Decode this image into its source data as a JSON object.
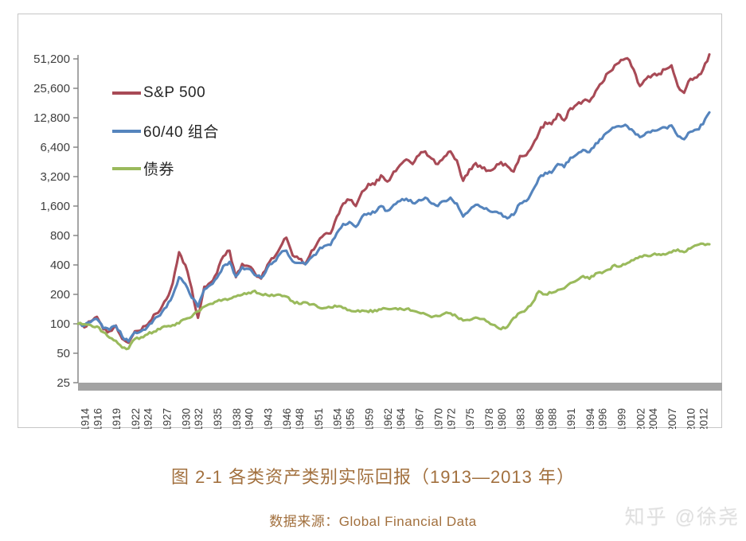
{
  "figure": {
    "title": "图 2-1 各类资产类别实际回报（1913—2013 年）",
    "source_label": "数据来源：Global Financial Data",
    "watermark": "知乎 @徐尧"
  },
  "colors": {
    "sp500": "#a84a56",
    "portfolio6040": "#5584bd",
    "bonds": "#9aba5c",
    "axis_line": "#7f7f7f",
    "axis_text": "#3f3f3f",
    "baseline_bar": "#a3a3a3",
    "caption": "#a2703e",
    "watermark": "#e0e0e0"
  },
  "chart_data": {
    "type": "line",
    "title": "",
    "xlabel": "",
    "ylabel": "",
    "grid": false,
    "legend_position": "inside-top-left",
    "y_scale": "log2",
    "ylim": [
      25,
      51200
    ],
    "y_ticks": [
      {
        "value": 51200,
        "label": "51,200"
      },
      {
        "value": 25600,
        "label": "25,600"
      },
      {
        "value": 12800,
        "label": "12,800"
      },
      {
        "value": 6400,
        "label": "6,400"
      },
      {
        "value": 3200,
        "label": "3,200"
      },
      {
        "value": 1600,
        "label": "1,600"
      },
      {
        "value": 800,
        "label": "800"
      },
      {
        "value": 400,
        "label": "400"
      },
      {
        "value": 200,
        "label": "200"
      },
      {
        "value": 100,
        "label": "100"
      },
      {
        "value": 50,
        "label": "50"
      },
      {
        "value": 25,
        "label": "25"
      }
    ],
    "x_range": [
      1913,
      2013
    ],
    "x_tick_labels": [
      "1914",
      "1916",
      "1919",
      "1922",
      "1924",
      "1927",
      "1930",
      "1932",
      "1935",
      "1938",
      "1940",
      "1943",
      "1946",
      "1948",
      "1951",
      "1954",
      "1956",
      "1959",
      "1962",
      "1964",
      "1967",
      "1970",
      "1972",
      "1975",
      "1978",
      "1980",
      "1983",
      "1986",
      "1988",
      "1991",
      "1994",
      "1996",
      "1999",
      "2002",
      "2004",
      "2007",
      "2010",
      "2012"
    ],
    "years_start": 1913,
    "series": [
      {
        "name": "S&P 500",
        "color": "#a84a56",
        "values": [
          100,
          92,
          106,
          118,
          88,
          84,
          96,
          70,
          64,
          84,
          86,
          98,
          124,
          138,
          178,
          260,
          540,
          400,
          230,
          115,
          240,
          265,
          330,
          490,
          560,
          300,
          410,
          390,
          330,
          290,
          400,
          470,
          600,
          760,
          500,
          460,
          410,
          560,
          690,
          820,
          840,
          1250,
          1700,
          1850,
          1600,
          2250,
          2700,
          2650,
          3300,
          2850,
          3600,
          4200,
          4800,
          4300,
          5300,
          5800,
          4900,
          4300,
          5100,
          5800,
          4700,
          2900,
          3800,
          4400,
          3900,
          3700,
          3900,
          4500,
          4100,
          3600,
          5200,
          5300,
          6700,
          9000,
          11500,
          11000,
          14000,
          12000,
          16000,
          17500,
          19000,
          18700,
          24000,
          29000,
          37000,
          44000,
          50000,
          52000,
          40000,
          27000,
          32000,
          35000,
          36000,
          40000,
          44000,
          27000,
          23000,
          32000,
          33000,
          40000,
          57000
        ]
      },
      {
        "name": "60/40 组合",
        "color": "#5584bd",
        "values": [
          100,
          96,
          104,
          112,
          90,
          87,
          95,
          74,
          66,
          82,
          84,
          93,
          110,
          122,
          148,
          195,
          300,
          255,
          185,
          150,
          225,
          250,
          295,
          390,
          430,
          305,
          380,
          365,
          315,
          295,
          375,
          430,
          520,
          560,
          435,
          420,
          405,
          480,
          555,
          625,
          640,
          850,
          1050,
          1100,
          980,
          1250,
          1350,
          1370,
          1600,
          1430,
          1650,
          1800,
          1900,
          1720,
          1850,
          1950,
          1700,
          1600,
          1800,
          1950,
          1700,
          1250,
          1450,
          1650,
          1550,
          1450,
          1400,
          1350,
          1200,
          1300,
          1700,
          1800,
          2300,
          3100,
          3500,
          3500,
          4300,
          4000,
          5000,
          5400,
          6000,
          5700,
          7000,
          7800,
          9200,
          10200,
          10400,
          10500,
          9300,
          8100,
          9000,
          9500,
          9700,
          10200,
          10700,
          8300,
          7700,
          9200,
          9700,
          11000,
          14500
        ]
      },
      {
        "name": "债券",
        "color": "#9aba5c",
        "values": [
          100,
          99,
          97,
          94,
          82,
          72,
          67,
          57,
          56,
          70,
          73,
          78,
          83,
          88,
          94,
          97,
          101,
          112,
          118,
          134,
          150,
          160,
          170,
          177,
          180,
          190,
          198,
          208,
          218,
          200,
          196,
          193,
          198,
          190,
          170,
          160,
          166,
          158,
          148,
          145,
          147,
          150,
          145,
          138,
          134,
          137,
          132,
          138,
          140,
          142,
          143,
          144,
          142,
          136,
          130,
          126,
          117,
          120,
          127,
          128,
          118,
          108,
          109,
          116,
          112,
          104,
          97,
          88,
          93,
          115,
          130,
          140,
          165,
          215,
          200,
          207,
          222,
          230,
          262,
          278,
          308,
          288,
          328,
          330,
          358,
          400,
          388,
          418,
          448,
          488,
          500,
          508,
          515,
          510,
          538,
          575,
          540,
          590,
          638,
          660,
          650
        ]
      }
    ]
  }
}
